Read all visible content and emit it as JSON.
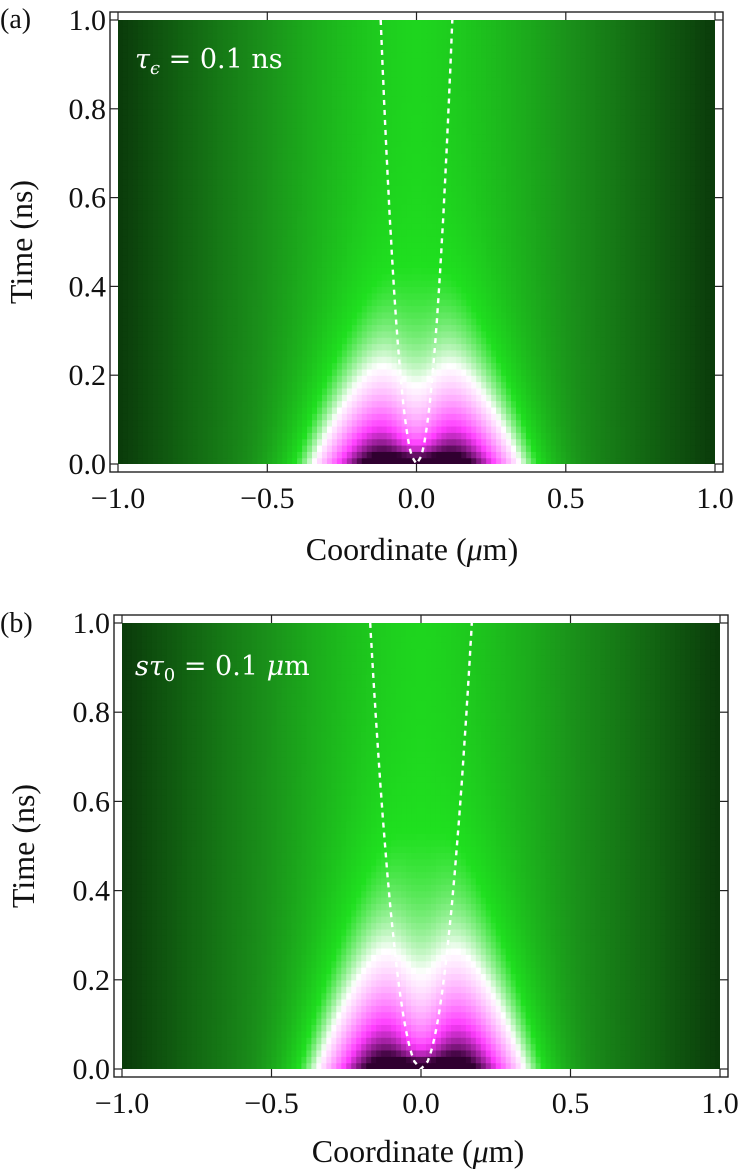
{
  "chart_data": [
    {
      "type": "heatmap",
      "panel_label": "(a)",
      "annotation": {
        "symbol": "τ",
        "subscript": "ϵ",
        "value_text": " = 0.1 ",
        "unit": "ns"
      },
      "xlabel_parts": [
        "Coordinate (",
        "μ",
        "m)"
      ],
      "ylabel": "Time (ns)",
      "xlim": [
        -1.0,
        1.0
      ],
      "ylim": [
        0.0,
        1.0
      ],
      "x_ticks": [
        "−1.0",
        "−0.5",
        "0.0",
        "0.5",
        "1.0"
      ],
      "x_tick_values": [
        -1.0,
        -0.5,
        0.0,
        0.5,
        1.0
      ],
      "y_ticks": [
        "0.0",
        "0.2",
        "0.4",
        "0.6",
        "0.8",
        "1.0"
      ],
      "y_tick_values": [
        0.0,
        0.2,
        0.4,
        0.6,
        0.8,
        1.0
      ],
      "colormap": [
        "#0a3a0a",
        "#1a8f1a",
        "#1fe01f",
        "#ffffff",
        "#ff3cff",
        "#300030"
      ],
      "dashed_curve": {
        "color": "#ffffff",
        "x_half_width_at_top": 0.12,
        "shape": "parabola-then-vertical",
        "vertex": [
          0.0,
          0.0
        ]
      },
      "field": {
        "hole_half_width": 0.1,
        "lobe_half_width": 0.3,
        "decay_time": 0.15
      }
    },
    {
      "type": "heatmap",
      "panel_label": "(b)",
      "annotation": {
        "symbol": "sτ",
        "subscript": "0",
        "value_text": " = 0.1 ",
        "unit_italic": "μ",
        "unit": "m"
      },
      "xlabel_parts": [
        "Coordinate (",
        "μ",
        "m)"
      ],
      "ylabel": "Time (ns)",
      "xlim": [
        -1.0,
        1.0
      ],
      "ylim": [
        0.0,
        1.0
      ],
      "x_ticks": [
        "−1.0",
        "−0.5",
        "0.0",
        "0.5",
        "1.0"
      ],
      "x_tick_values": [
        -1.0,
        -0.5,
        0.0,
        0.5,
        1.0
      ],
      "y_ticks": [
        "0.0",
        "0.2",
        "0.4",
        "0.6",
        "0.8",
        "1.0"
      ],
      "y_tick_values": [
        0.0,
        0.2,
        0.4,
        0.6,
        0.8,
        1.0
      ],
      "colormap": [
        "#0a3a0a",
        "#1a8f1a",
        "#1fe01f",
        "#ffffff",
        "#ff3cff",
        "#300030"
      ],
      "dashed_curve": {
        "color": "#ffffff",
        "x_half_width_at_top": 0.17,
        "shape": "parabola",
        "vertex": [
          0.0,
          0.0
        ]
      },
      "field": {
        "hole_half_width": 0.1,
        "lobe_half_width": 0.3,
        "decay_time": 0.18
      }
    }
  ]
}
